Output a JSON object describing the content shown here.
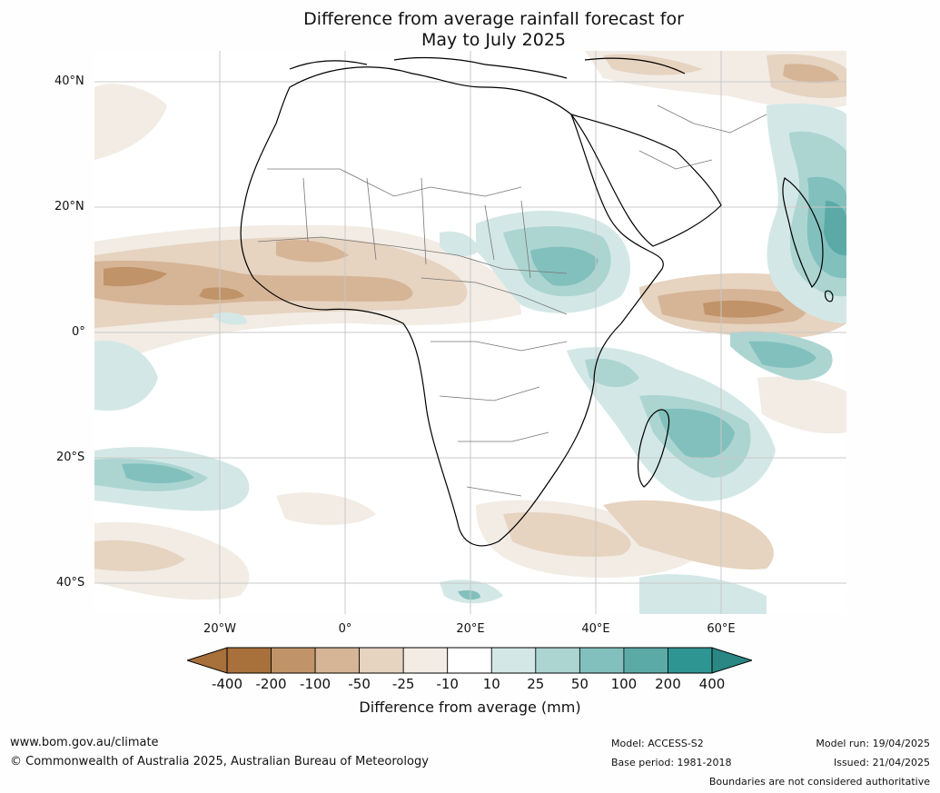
{
  "title": {
    "line1": "Difference from average rainfall forecast for",
    "line2": "May to July 2025"
  },
  "map": {
    "lat_ticks": [
      "40°N",
      "20°N",
      "0°",
      "20°S",
      "40°S"
    ],
    "lon_ticks": [
      "20°W",
      "0°",
      "20°E",
      "40°E",
      "60°E"
    ],
    "colors": {
      "c1": "#a8703a",
      "c2": "#c09368",
      "c3": "#d6b496",
      "c4": "#e6d3c0",
      "c5": "#f2ece5",
      "c6": "#ffffff",
      "c7": "#d3e8e6",
      "c8": "#acd5d2",
      "c9": "#82c0bd",
      "c10": "#5baaa8",
      "c11": "#2f9592"
    }
  },
  "colorbar": {
    "ticks": [
      "-400",
      "-200",
      "-100",
      "-50",
      "-25",
      "-10",
      "10",
      "25",
      "50",
      "100",
      "200",
      "400"
    ],
    "colors": [
      "#a8703a",
      "#c09368",
      "#d6b496",
      "#e6d3c0",
      "#f2ece5",
      "#ffffff",
      "#d3e8e6",
      "#acd5d2",
      "#82c0bd",
      "#5baaa8",
      "#2f9592"
    ],
    "label": "Difference from average (mm)"
  },
  "footer": {
    "url": "www.bom.gov.au/climate",
    "copyright": "© Commonwealth of Australia 2025, Australian Bureau of Meteorology",
    "model": "Model: ACCESS-S2",
    "base_period": "Base period: 1981-2018",
    "model_run": "Model run: 19/04/2025",
    "issued": "Issued: 21/04/2025",
    "disclaimer": "Boundaries are not considered authoritative"
  }
}
